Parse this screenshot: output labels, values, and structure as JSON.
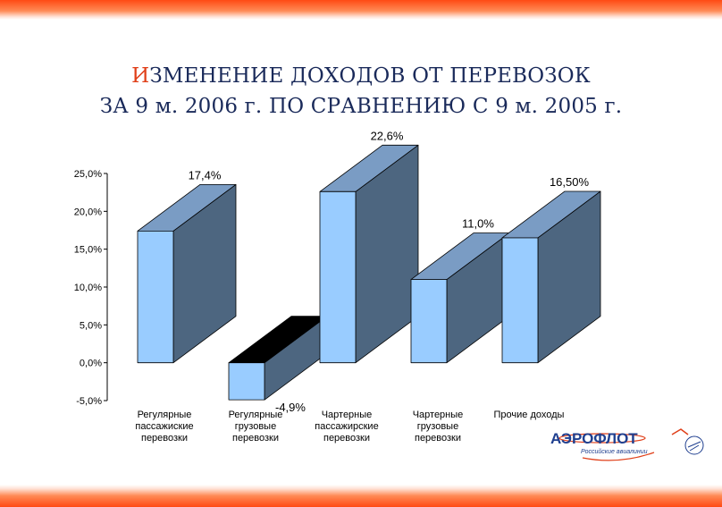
{
  "title": {
    "line1_first_letter": "И",
    "line1_rest": "ЗМЕНЕНИЕ ДОХОДОВ ОТ ПЕРЕВОЗОК",
    "line2": "ЗА 9 м. 2006 г. ПО СРАВНЕНИЮ С 9 м. 2005 г."
  },
  "colors": {
    "accent": "#e0401a",
    "title": "#1a2a5a",
    "bar_front": "#99ccff",
    "bar_top": "#7a9cc4",
    "bar_side": "#4d6680",
    "negative_top": "#000000",
    "band": "#ff4a14"
  },
  "chart_data": {
    "type": "bar",
    "categories": [
      [
        "Регулярные",
        "пассажиские",
        "перевозки"
      ],
      [
        "Регулярные",
        "грузовые",
        "перевозки"
      ],
      [
        "Чартерные",
        "пассажирские",
        "перевозки"
      ],
      [
        "Чартерные",
        "грузовые",
        "перевозки"
      ],
      [
        "Прочие доходы"
      ]
    ],
    "values": [
      17.4,
      -4.9,
      22.6,
      11.0,
      16.5
    ],
    "data_labels": [
      "17,4%",
      "-4,9%",
      "22,6%",
      "11,0%",
      "16,50%"
    ],
    "ylim": [
      -5,
      25
    ],
    "yticks": [
      25,
      20,
      15,
      10,
      5,
      0,
      -5
    ],
    "ytick_labels": [
      "25,0%",
      "20,0%",
      "15,0%",
      "10,0%",
      "5,0%",
      "0,0%",
      "-5,0%"
    ],
    "grid": false,
    "style": "3d-bar"
  },
  "logo": {
    "name": "АЭРОФЛОТ",
    "tagline": "Российские авиалинии"
  }
}
